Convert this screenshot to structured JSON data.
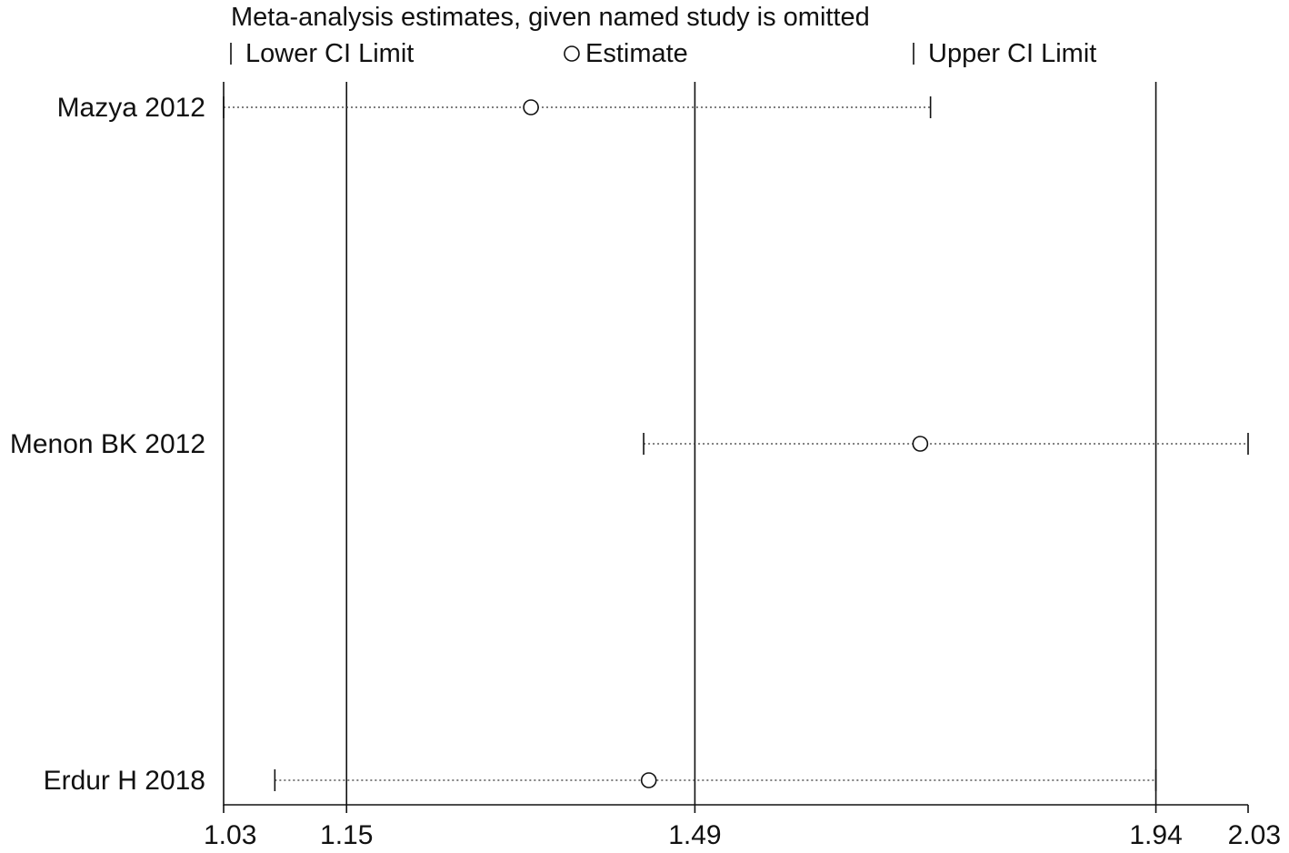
{
  "chart_data": {
    "type": "forest",
    "title": "Meta-analysis estimates, given named study is omitted",
    "legend": {
      "lower": "Lower CI Limit",
      "estimate": "Estimate",
      "upper": "Upper CI Limit",
      "placement": "top"
    },
    "studies": [
      {
        "name": "Mazya 2012",
        "lower": 1.03,
        "estimate": 1.33,
        "upper": 1.72
      },
      {
        "name": "Menon BK 2012",
        "lower": 1.44,
        "estimate": 1.71,
        "upper": 2.03
      },
      {
        "name": "Erdur H 2018",
        "lower": 1.08,
        "estimate": 1.445,
        "upper": 1.94
      }
    ],
    "xticks": [
      "1.03",
      "1.15",
      "1.49",
      "1.94",
      "2.03"
    ],
    "reference_lines": [
      1.15,
      1.49,
      1.94
    ],
    "xlim": [
      1.03,
      2.03
    ],
    "xlabel": "",
    "ylabel": ""
  }
}
